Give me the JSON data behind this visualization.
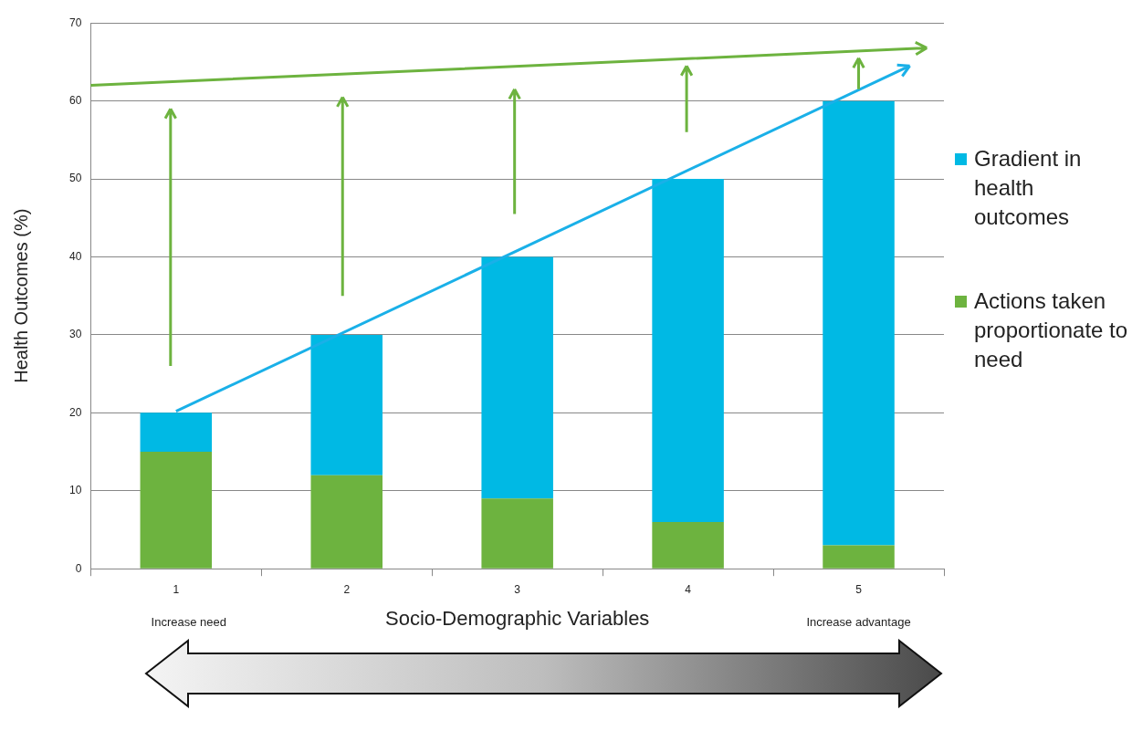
{
  "chart_data": {
    "type": "bar",
    "stacked": true,
    "categories": [
      "1",
      "2",
      "3",
      "4",
      "5"
    ],
    "series": [
      {
        "name": "Actions taken proportionate to need",
        "color": "#6db33f",
        "values": [
          15,
          12,
          9,
          6,
          3
        ]
      },
      {
        "name": "Gradient in health outcomes",
        "color": "#00b9e4",
        "values": [
          5,
          18,
          31,
          44,
          57
        ]
      }
    ],
    "xlabel": "Socio-Demographic Variables",
    "ylabel": "Health Outcomes (%)",
    "ylim": [
      0,
      70
    ],
    "yticks": [
      0,
      10,
      20,
      30,
      40,
      50,
      60,
      70
    ],
    "grid": "y",
    "legend": "right",
    "annotations": [
      "Increase need",
      "Increase advantage"
    ]
  }
}
